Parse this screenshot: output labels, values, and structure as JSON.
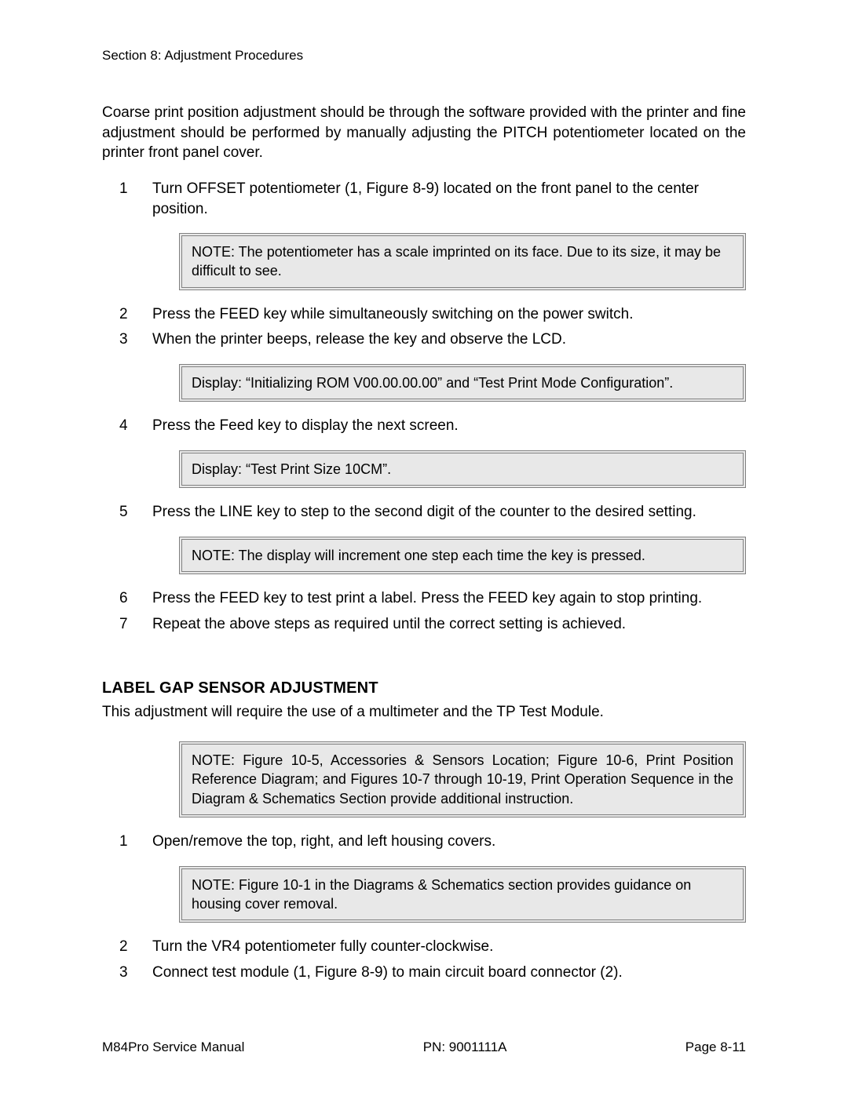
{
  "page": {
    "section_header": "Section 8: Adjustment Procedures",
    "intro": "Coarse print position adjustment should be through the software provided with the printer and fine adjustment should be performed by manually adjusting the PITCH potentiometer located on the printer front panel cover.",
    "procedure1": {
      "steps": {
        "s1": {
          "num": "1",
          "text": "Turn OFFSET potentiometer (1, Figure 8-9) located on the front panel to the center position."
        },
        "s2": {
          "num": "2",
          "text": "Press the FEED key while simultaneously switching on the power switch."
        },
        "s3": {
          "num": "3",
          "text": "When the printer beeps, release the key and observe the LCD."
        },
        "s4": {
          "num": "4",
          "text": "Press the Feed key to display the next screen."
        },
        "s5": {
          "num": "5",
          "text": "Press the LINE key to step to the second digit of the counter to the desired setting."
        },
        "s6": {
          "num": "6",
          "text": "Press the FEED key to test print a label. Press the FEED key again to stop printing."
        },
        "s7": {
          "num": "7",
          "text": "Repeat the above steps as required until the correct setting is achieved."
        }
      },
      "notes": {
        "n1": "NOTE: The potentiometer has a scale imprinted on its face. Due to its size, it may be difficult to see.",
        "n2": "Display: “Initializing ROM V00.00.00.00” and “Test Print Mode Configuration”.",
        "n3": "Display: “Test Print Size 10CM”.",
        "n4": "NOTE: The display will increment one step each time the key is pressed."
      }
    },
    "section2": {
      "heading": "LABEL GAP SENSOR ADJUSTMENT",
      "intro": "This adjustment will require the use of a multimeter and the TP Test Module.",
      "notes": {
        "n1": "NOTE: Figure 10-5, Accessories & Sensors Location; Figure 10-6, Print Position Reference Diagram; and Figures 10-7 through 10-19, Print Operation Sequence in the Diagram & Schematics Section provide additional instruction.",
        "n2": "NOTE: Figure 10-1 in the Diagrams & Schematics section provides guidance on housing cover removal."
      },
      "steps": {
        "s1": {
          "num": "1",
          "text": "Open/remove the top, right, and left housing covers."
        },
        "s2": {
          "num": "2",
          "text": "Turn the VR4 potentiometer fully counter-clockwise."
        },
        "s3": {
          "num": "3",
          "text": "Connect test module (1, Figure 8-9) to main circuit board connector (2)."
        }
      }
    },
    "footer": {
      "left": "M84Pro Service Manual",
      "center": "PN: 9001111A",
      "right": "Page 8-11"
    }
  },
  "colors": {
    "note_bg": "#e8e8e8",
    "note_border": "#808080",
    "text": "#000000",
    "background": "#ffffff"
  },
  "typography": {
    "body_font_size": 19,
    "header_font_size": 17,
    "note_font_size": 18,
    "subheading_font_size": 20,
    "font_family": "Arial"
  }
}
